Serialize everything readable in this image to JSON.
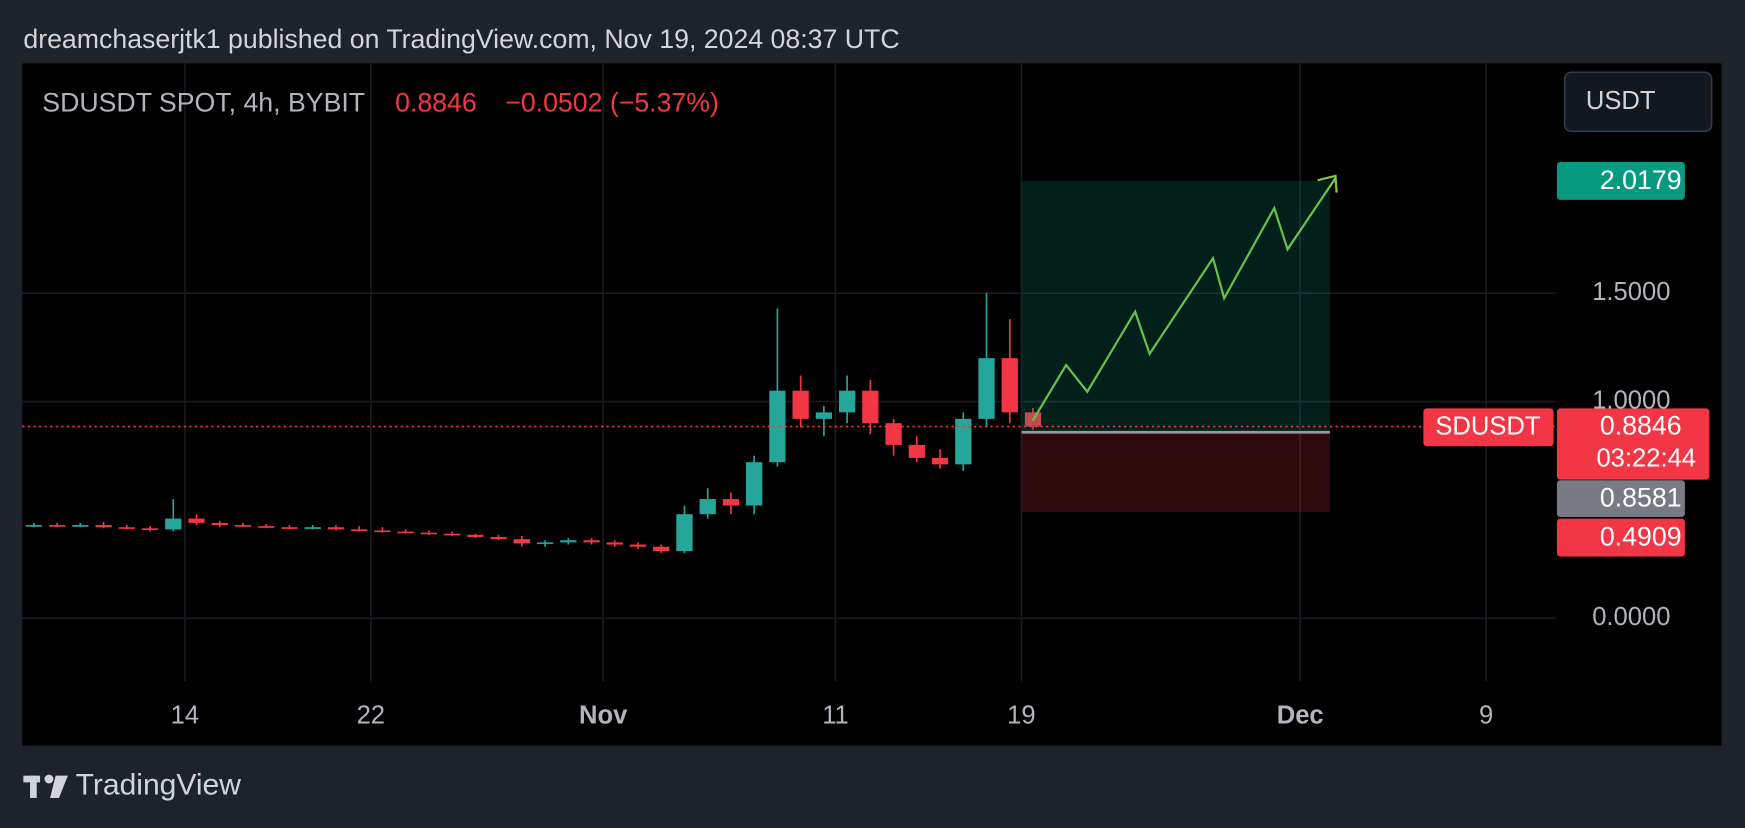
{
  "header": {
    "publish_line": "dreamchaserjtk1 published on TradingView.com, Nov 19, 2024 08:37 UTC"
  },
  "chart_data": {
    "type": "candlestick",
    "title": "SDUSDT SPOT, 4h, BYBIT",
    "last_price": 0.8846,
    "change": "−0.0502 (−5.37%)",
    "currency": "USDT",
    "symbol": "SDUSDT",
    "countdown": "03:22:44",
    "x": [
      "2024-10-07",
      "2024-10-08",
      "2024-10-09",
      "2024-10-10",
      "2024-10-11",
      "2024-10-12",
      "2024-10-13",
      "2024-10-14",
      "2024-10-15",
      "2024-10-16",
      "2024-10-17",
      "2024-10-18",
      "2024-10-19",
      "2024-10-20",
      "2024-10-21",
      "2024-10-22",
      "2024-10-23",
      "2024-10-24",
      "2024-10-25",
      "2024-10-26",
      "2024-10-27",
      "2024-10-28",
      "2024-10-29",
      "2024-10-30",
      "2024-10-31",
      "2024-11-01",
      "2024-11-02",
      "2024-11-03",
      "2024-11-04",
      "2024-11-05",
      "2024-11-06",
      "2024-11-07",
      "2024-11-08",
      "2024-11-09",
      "2024-11-10",
      "2024-11-11",
      "2024-11-12",
      "2024-11-13",
      "2024-11-14",
      "2024-11-15",
      "2024-11-16",
      "2024-11-17",
      "2024-11-18",
      "2024-11-19"
    ],
    "open": [
      0.43,
      0.43,
      0.425,
      0.43,
      0.42,
      0.415,
      0.41,
      0.46,
      0.44,
      0.43,
      0.425,
      0.42,
      0.415,
      0.42,
      0.41,
      0.405,
      0.4,
      0.395,
      0.39,
      0.385,
      0.375,
      0.365,
      0.345,
      0.35,
      0.36,
      0.35,
      0.34,
      0.33,
      0.31,
      0.48,
      0.55,
      0.52,
      0.72,
      1.05,
      0.92,
      0.95,
      1.05,
      0.9,
      0.8,
      0.74,
      0.71,
      0.92,
      1.2,
      0.95
    ],
    "high": [
      0.44,
      0.44,
      0.44,
      0.445,
      0.43,
      0.425,
      0.55,
      0.48,
      0.45,
      0.44,
      0.435,
      0.43,
      0.43,
      0.43,
      0.425,
      0.42,
      0.41,
      0.405,
      0.4,
      0.39,
      0.385,
      0.38,
      0.36,
      0.37,
      0.37,
      0.36,
      0.35,
      0.34,
      0.52,
      0.6,
      0.58,
      0.75,
      1.43,
      1.12,
      0.98,
      1.12,
      1.1,
      0.92,
      0.84,
      0.78,
      0.95,
      1.5,
      1.38,
      0.97
    ],
    "low": [
      0.42,
      0.42,
      0.42,
      0.415,
      0.41,
      0.4,
      0.4,
      0.43,
      0.42,
      0.42,
      0.415,
      0.41,
      0.41,
      0.405,
      0.4,
      0.395,
      0.39,
      0.385,
      0.38,
      0.37,
      0.36,
      0.33,
      0.33,
      0.34,
      0.34,
      0.33,
      0.32,
      0.3,
      0.3,
      0.46,
      0.48,
      0.48,
      0.7,
      0.88,
      0.84,
      0.9,
      0.85,
      0.75,
      0.72,
      0.69,
      0.68,
      0.88,
      0.9,
      0.87
    ],
    "close": [
      0.43,
      0.425,
      0.43,
      0.42,
      0.415,
      0.41,
      0.46,
      0.44,
      0.43,
      0.425,
      0.42,
      0.415,
      0.42,
      0.41,
      0.405,
      0.4,
      0.395,
      0.39,
      0.385,
      0.375,
      0.365,
      0.345,
      0.35,
      0.36,
      0.35,
      0.34,
      0.33,
      0.31,
      0.48,
      0.55,
      0.52,
      0.72,
      1.05,
      0.92,
      0.95,
      1.05,
      0.9,
      0.8,
      0.74,
      0.71,
      0.92,
      1.2,
      0.95,
      0.8846
    ],
    "up_color": "#26a69a",
    "down_color": "#f23645",
    "xlim": [
      "2024-10-07",
      "2024-12-12"
    ],
    "xticks": [
      {
        "value": "2024-10-14",
        "label": "14"
      },
      {
        "value": "2024-10-22",
        "label": "22"
      },
      {
        "value": "2024-11-01",
        "label": "Nov"
      },
      {
        "value": "2024-11-11",
        "label": "11"
      },
      {
        "value": "2024-11-19",
        "label": "19"
      },
      {
        "value": "2024-12-01",
        "label": "Dec"
      },
      {
        "value": "2024-12-09",
        "label": "9"
      }
    ],
    "ylim": [
      -0.29,
      2.56
    ],
    "yticks": [
      {
        "value": 0,
        "label": "0.0000"
      },
      {
        "value": 1,
        "label": "1.0000"
      },
      {
        "value": 1.5,
        "label": "1.5000"
      }
    ],
    "grid": true,
    "position": {
      "target": 2.0179,
      "entry": 0.8581,
      "stop": 0.4909
    }
  },
  "footer": {
    "brand": "TradingView"
  }
}
